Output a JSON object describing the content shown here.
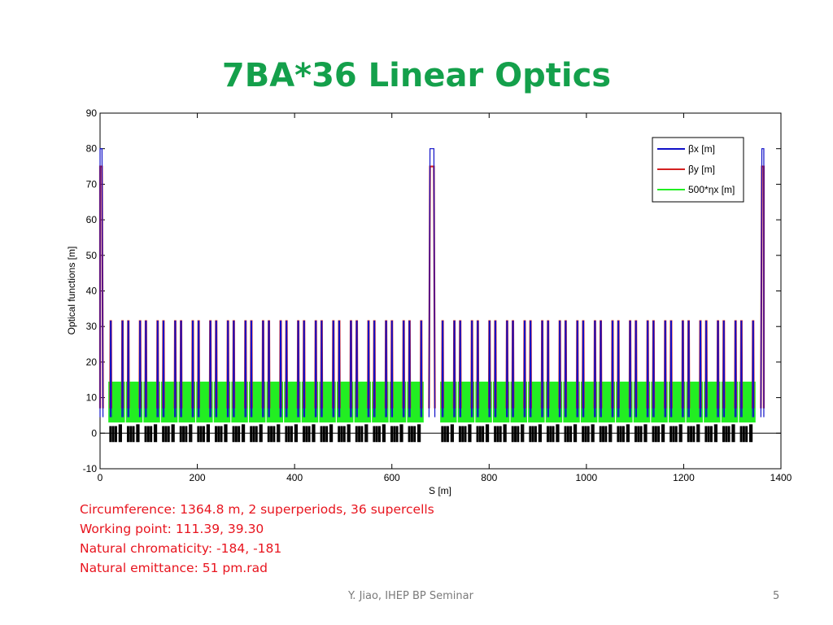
{
  "slide": {
    "title": "7BA*36 Linear Optics",
    "notes": [
      "Circumference: 1364.8 m,  2 superperiods, 36 supercells",
      "Working point: 111.39, 39.30",
      "Natural chromaticity: -184, -181",
      "Natural emittance: 51 pm.rad"
    ],
    "footer": "Y. Jiao, IHEP BP Seminar",
    "page_number": "5"
  },
  "chart_data": {
    "type": "line",
    "title": "",
    "xlabel": "S [m]",
    "ylabel": "Optical functions [m]",
    "xlim": [
      0,
      1400
    ],
    "ylim": [
      -10,
      90
    ],
    "xticks": [
      0,
      200,
      400,
      600,
      800,
      1000,
      1200,
      1400
    ],
    "yticks": [
      -10,
      0,
      10,
      20,
      30,
      40,
      50,
      60,
      70,
      80,
      90
    ],
    "legend_position": "top-right",
    "circumference": 1364.8,
    "superperiods": 2,
    "supercells": 36,
    "series": [
      {
        "name": "βx [m]",
        "color": "#1010c8",
        "peak_max": 80,
        "cell_max": 31.5,
        "cell_min": 0.5
      },
      {
        "name": "βy [m]",
        "color": "#d42020",
        "peak_max": 75,
        "cell_max": 31.5,
        "cell_min": 2
      },
      {
        "name": "500*ηx [m]",
        "color": "#22ee22",
        "cell_max": 14.5,
        "cell_min": 0
      }
    ],
    "lattice_magnets_color": "#000000"
  }
}
